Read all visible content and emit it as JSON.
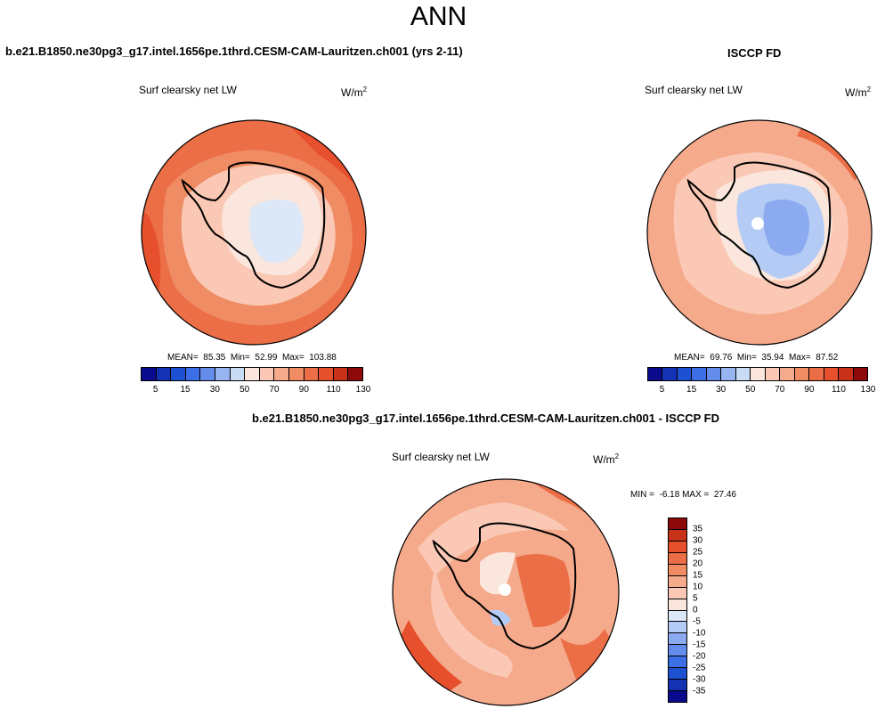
{
  "figure": {
    "season": "ANN",
    "case_title": "b.e21.B1850.ne30pg3_g17.intel.1656pe.1thrd.CESM-CAM-Lauritzen.ch001 (yrs 2-11)",
    "obs_title": "ISCCP FD",
    "diff_title": "b.e21.B1850.ne30pg3_g17.intel.1656pe.1thrd.CESM-CAM-Lauritzen.ch001 - ISCCP FD"
  },
  "panels": {
    "model": {
      "variable": "Surf clearsky net LW",
      "units_base": "W/m",
      "units_exp": "2",
      "stats": "MEAN=  85.35  Min=  52.99  Max=  103.88",
      "mean": 85.35,
      "min": 52.99,
      "max": 103.88
    },
    "obs": {
      "variable": "Surf clearsky net LW",
      "units_base": "W/m",
      "units_exp": "2",
      "stats": "MEAN=  69.76  Min=  35.94  Max=  87.52",
      "mean": 69.76,
      "min": 35.94,
      "max": 87.52
    },
    "diff": {
      "variable": "Surf clearsky net LW",
      "units_base": "W/m",
      "units_exp": "2",
      "stats": "MIN =  -6.18 MAX =  27.46",
      "min": -6.18,
      "max": 27.46
    }
  },
  "colorbars": {
    "abs": {
      "colors": [
        "#0a0a8c",
        "#1432b4",
        "#1e50d2",
        "#3c6ee6",
        "#648ceb",
        "#96b4f0",
        "#c8dcf5",
        "#fae6dc",
        "#fac8b4",
        "#f5aa8c",
        "#f08c64",
        "#eb6e46",
        "#e6502d",
        "#c83219",
        "#8c0a0a"
      ],
      "labels": [
        "5",
        "15",
        "30",
        "50",
        "70",
        "90",
        "110",
        "130"
      ]
    },
    "diff": {
      "colors": [
        "#8c0a0a",
        "#c83219",
        "#e6502d",
        "#eb6e46",
        "#f08c64",
        "#f5aa8c",
        "#fac8b4",
        "#fae6dc",
        "#dce8f8",
        "#b4ccf5",
        "#8caaf0",
        "#648ceb",
        "#3c6ee6",
        "#1e50d2",
        "#1432b4",
        "#0a0a8c"
      ],
      "labels": [
        "35",
        "30",
        "25",
        "20",
        "15",
        "10",
        "5",
        "0",
        "-5",
        "-10",
        "-15",
        "-20",
        "-25",
        "-30",
        "-35"
      ]
    }
  },
  "map_colors": {
    "ocean_model": "#eb6e46",
    "ocean_model_light": "#f08c64",
    "ocean_model_dark": "#e6502d",
    "ice_model": "#fac8b4",
    "ice_model_inner": "#fae6dc",
    "land_model_core": "#dce8f8",
    "ocean_obs": "#f5aa8c",
    "ocean_obs_light": "#fac8b4",
    "ocean_obs_dark": "#eb6e46",
    "ice_obs": "#fae6dc",
    "land_obs": "#b4ccf5",
    "land_obs_core": "#8caaf0",
    "diff_base": "#f5aa8c",
    "diff_light": "#fac8b4",
    "diff_dark": "#eb6e46",
    "diff_darker": "#e6502d",
    "diff_neutral": "#fae6dc",
    "diff_neg": "#b4ccf5"
  }
}
